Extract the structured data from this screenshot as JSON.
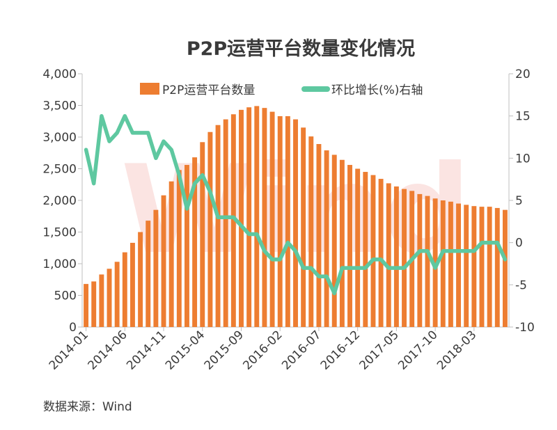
{
  "chart_data": {
    "type": "bar+line",
    "title": "P2P运营平台数量变化情况",
    "source": "数据来源：Wind",
    "watermark": "Wind",
    "left_axis": {
      "ylim": [
        0,
        4000
      ],
      "ticks": [
        "0",
        "500",
        "1,000",
        "1,500",
        "2,000",
        "2,500",
        "3,000",
        "3,500",
        "4,000"
      ]
    },
    "right_axis": {
      "ylim": [
        -10,
        20
      ],
      "ticks": [
        "-10",
        "-5",
        "0",
        "5",
        "10",
        "15",
        "20"
      ]
    },
    "x_tick_labels": [
      "2014-01",
      "2014-06",
      "2014-11",
      "2015-04",
      "2015-09",
      "2016-02",
      "2016-07",
      "2016-12",
      "2017-05",
      "2017-10",
      "2018-03"
    ],
    "x": [
      "2014-01",
      "2014-02",
      "2014-03",
      "2014-04",
      "2014-05",
      "2014-06",
      "2014-07",
      "2014-08",
      "2014-09",
      "2014-10",
      "2014-11",
      "2014-12",
      "2015-01",
      "2015-02",
      "2015-03",
      "2015-04",
      "2015-05",
      "2015-06",
      "2015-07",
      "2015-08",
      "2015-09",
      "2015-10",
      "2015-11",
      "2015-12",
      "2016-01",
      "2016-02",
      "2016-03",
      "2016-04",
      "2016-05",
      "2016-06",
      "2016-07",
      "2016-08",
      "2016-09",
      "2016-10",
      "2016-11",
      "2016-12",
      "2017-01",
      "2017-02",
      "2017-03",
      "2017-04",
      "2017-05",
      "2017-06",
      "2017-07",
      "2017-08",
      "2017-09",
      "2017-10",
      "2017-11",
      "2017-12",
      "2018-01",
      "2018-02",
      "2018-03",
      "2018-04",
      "2018-05",
      "2018-06",
      "2018-07"
    ],
    "series": [
      {
        "name": "P2P运营平台数量",
        "type": "bar",
        "axis": "left",
        "color": "#ed7d31",
        "values": [
          680,
          720,
          830,
          920,
          1030,
          1180,
          1330,
          1500,
          1680,
          1850,
          2080,
          2300,
          2480,
          2560,
          2680,
          2920,
          3080,
          3190,
          3280,
          3360,
          3430,
          3470,
          3490,
          3460,
          3400,
          3330,
          3330,
          3280,
          3150,
          3010,
          2890,
          2790,
          2720,
          2640,
          2560,
          2500,
          2450,
          2400,
          2340,
          2270,
          2220,
          2180,
          2150,
          2100,
          2070,
          2030,
          2000,
          1980,
          1950,
          1930,
          1910,
          1900,
          1900,
          1880,
          1850
        ]
      },
      {
        "name": "环比增长(%)右轴",
        "type": "line",
        "axis": "right",
        "color": "#5ec8a0",
        "values": [
          11,
          7,
          15,
          12,
          13,
          15,
          13,
          13,
          13,
          10,
          12,
          11,
          8,
          4,
          7,
          8,
          6,
          3,
          3,
          3,
          2,
          1,
          1,
          -1,
          -2,
          -2,
          0,
          -1,
          -3,
          -3,
          -4,
          -4,
          -6,
          -3,
          -3,
          -3,
          -3,
          -2,
          -2,
          -3,
          -3,
          -3,
          -2,
          -1,
          -1,
          -3,
          -1,
          -1,
          -1,
          -1,
          -1,
          0,
          0,
          0,
          -2
        ]
      }
    ],
    "legend_position": "top-center"
  }
}
